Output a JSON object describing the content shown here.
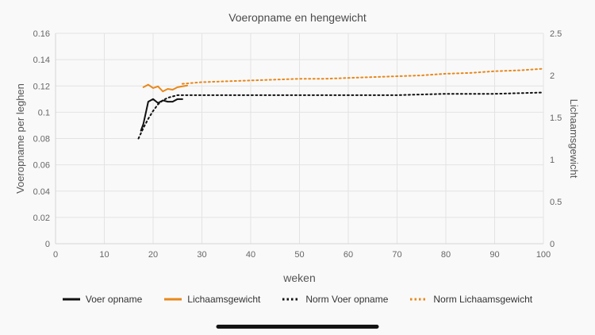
{
  "title": "Voeropname en hengewicht",
  "colors": {
    "black": "#111111",
    "orange": "#e8881b",
    "grid": "#e3e3e3",
    "axis_line": "#d5d5d5",
    "tick_text": "#666666",
    "axis_label": "#555555",
    "legend_text": "#333333",
    "bottom_bar": "#141414"
  },
  "chart_data": {
    "type": "line",
    "title": "Voeropname en hengewicht",
    "xlabel": "weken",
    "xlim": [
      0,
      100
    ],
    "x_ticks": [
      0,
      10,
      20,
      30,
      40,
      50,
      60,
      70,
      80,
      90,
      100
    ],
    "grid": true,
    "legend_position": "bottom",
    "left_axis": {
      "label": "Voeropname per leghen",
      "lim": [
        0,
        0.16
      ],
      "tick_values": [
        0,
        0.02,
        0.04,
        0.06,
        0.08,
        0.1,
        0.12,
        0.14,
        0.16
      ],
      "tick_labels": [
        "0",
        "0.02",
        "0.04",
        "0.06",
        "0.08",
        "0.1",
        "0.12",
        "0.14",
        "0.16"
      ]
    },
    "right_axis": {
      "label": "Lichaamsgewicht",
      "lim": [
        0,
        2.5
      ],
      "tick_values": [
        0,
        0.5,
        1,
        1.5,
        2,
        2.5
      ],
      "tick_labels": [
        "0",
        "0.5",
        "1",
        "1.5",
        "2",
        "2.5"
      ]
    },
    "series": [
      {
        "name": "Voer opname",
        "axis": "left",
        "color": "#111111",
        "dash": "solid",
        "x": [
          17.5,
          18,
          19,
          20,
          21,
          22,
          23,
          24,
          25,
          26
        ],
        "y": [
          0.086,
          0.091,
          0.108,
          0.11,
          0.107,
          0.109,
          0.108,
          0.108,
          0.11,
          0.11
        ]
      },
      {
        "name": "Lichaamsgewicht",
        "axis": "right",
        "color": "#e8881b",
        "dash": "solid",
        "x": [
          18,
          19,
          20,
          21,
          22,
          23,
          24,
          25,
          26,
          27
        ],
        "y": [
          1.86,
          1.89,
          1.85,
          1.87,
          1.81,
          1.84,
          1.83,
          1.86,
          1.87,
          1.88
        ]
      },
      {
        "name": "Norm Voer opname",
        "axis": "left",
        "color": "#111111",
        "dash": "dotted",
        "x": [
          17,
          18,
          19,
          20,
          21,
          22,
          23,
          24,
          25,
          30,
          40,
          50,
          60,
          70,
          80,
          90,
          100
        ],
        "y": [
          0.08,
          0.088,
          0.095,
          0.101,
          0.106,
          0.109,
          0.111,
          0.112,
          0.113,
          0.113,
          0.113,
          0.113,
          0.113,
          0.113,
          0.114,
          0.114,
          0.115
        ]
      },
      {
        "name": "Norm Lichaamsgewicht",
        "axis": "right",
        "color": "#e8881b",
        "dash": "dotted",
        "x": [
          26,
          30,
          35,
          40,
          45,
          50,
          55,
          60,
          65,
          70,
          75,
          80,
          85,
          90,
          95,
          100
        ],
        "y": [
          1.9,
          1.92,
          1.93,
          1.94,
          1.95,
          1.96,
          1.96,
          1.97,
          1.98,
          1.99,
          2.0,
          2.02,
          2.03,
          2.05,
          2.06,
          2.08
        ]
      }
    ]
  }
}
